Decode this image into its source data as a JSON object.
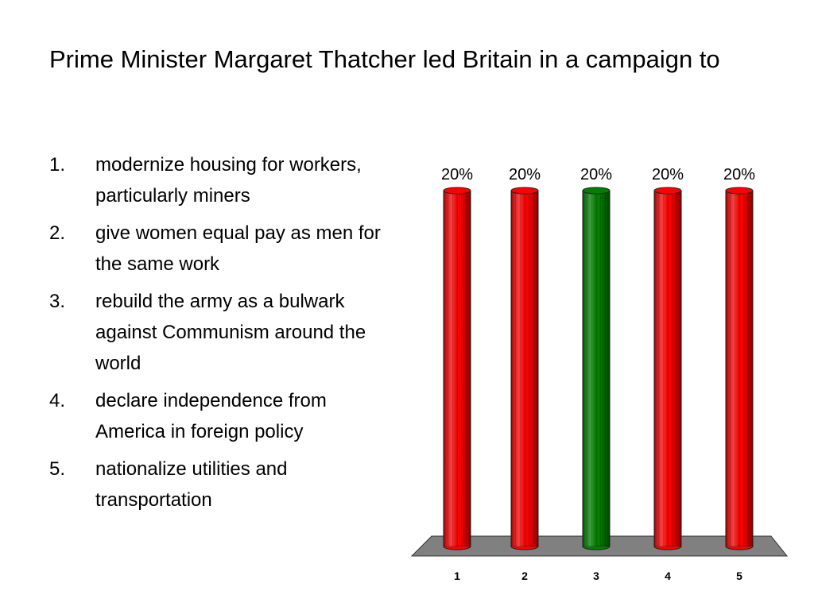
{
  "slide": {
    "title": "Prime Minister Margaret Thatcher led Britain in a campaign to"
  },
  "options": [
    {
      "number": "1.",
      "text": "modernize housing for workers, particularly miners"
    },
    {
      "number": "2.",
      "text": "give women equal pay as men for the same work"
    },
    {
      "number": "3.",
      "text": "rebuild the army as a bulwark against Communism around the world"
    },
    {
      "number": "4.",
      "text": "declare independence from America in foreign policy"
    },
    {
      "number": "5.",
      "text": "nationalize utilities and transportation"
    }
  ],
  "colors": {
    "bar_default": "#ff0000",
    "bar_highlight": "#008000",
    "floor": "#808080"
  },
  "chart_data": {
    "type": "bar",
    "categories": [
      "1",
      "2",
      "3",
      "4",
      "5"
    ],
    "values": [
      20,
      20,
      20,
      20,
      20
    ],
    "data_labels": [
      "20%",
      "20%",
      "20%",
      "20%",
      "20%"
    ],
    "highlight_category": "3",
    "ylim": [
      0,
      20
    ],
    "grid": false,
    "style": "3d-cylinder"
  }
}
